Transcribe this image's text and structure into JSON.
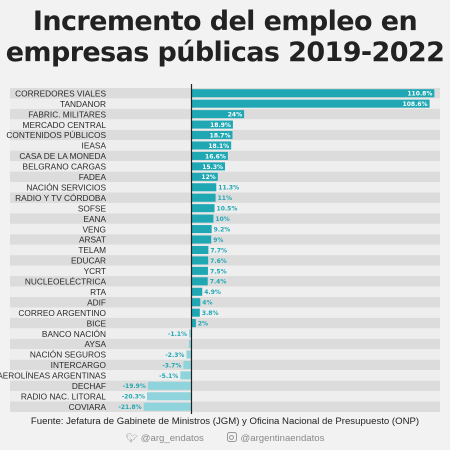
{
  "title_lines": [
    "Incremento del empleo en",
    "empresas públicas 2019-2022"
  ],
  "source": "Fuente: Jefatura de Gabinete de Ministros (JGM) y Oficina Nacional de Presupuesto (ONP)",
  "socials": {
    "twitter": "@arg_endatos",
    "instagram": "@argentinaendatos"
  },
  "colors": {
    "positive_bar": "#1fa7b4",
    "negative_bar": "#8fd4dc",
    "zero_line": "#222222",
    "stripe_light": "#eeeeee",
    "stripe_dark": "#dcdcdc"
  },
  "chart_data": {
    "type": "bar",
    "orientation": "horizontal",
    "categories": [
      "CORREDORES VIALES",
      "TANDANOR",
      "FABRIC. MILITARES",
      "MERCADO CENTRAL",
      "CONTENIDOS PÚBLICOS",
      "IEASA",
      "CASA DE LA MONEDA",
      "BELGRANO CARGAS",
      "FADEA",
      "NACIÓN SERVICIOS",
      "RADIO Y TV CÓRDOBA",
      "SOFSE",
      "EANA",
      "VENG",
      "ARSAT",
      "TELAM",
      "EDUCAR",
      "YCRT",
      "NUCLEOELÉCTRICA",
      "RTA",
      "ADIF",
      "CORREO ARGENTINO",
      "BICE",
      "BANCO NACIÓN",
      "AYSA",
      "NACIÓN SEGUROS",
      "INTERCARGO",
      "AEROLÍNEAS ARGENTINAS",
      "DECHAF",
      "RADIO NAC. LITORAL",
      "COVIARA"
    ],
    "values": [
      110.8,
      108.6,
      24,
      18.9,
      18.7,
      18.1,
      16.6,
      15.3,
      12,
      11.3,
      11,
      10.5,
      10,
      9.2,
      9,
      7.7,
      7.6,
      7.5,
      7.4,
      4.9,
      4,
      3.8,
      2,
      -1.1,
      -1.2,
      -2.3,
      -3.7,
      -5.1,
      -19.9,
      -20.3,
      -21.8
    ],
    "labels": [
      "110.8%",
      "108.6%",
      "24%",
      "18.9%",
      "18.7%",
      "18.1%",
      "16.6%",
      "15.3%",
      "12%",
      "11.3%",
      "11%",
      "10.5%",
      "10%",
      "9.2%",
      "9%",
      "7.7%",
      "7.6%",
      "7.5%",
      "7.4%",
      "4.9%",
      "4%",
      "3.8%",
      "2%",
      "-1.1%",
      "",
      "-2.3%",
      "-3.7%",
      "-5.1%",
      "-19.9%",
      "-20.3%",
      "-21.8%"
    ],
    "unit": "%",
    "xlim": [
      -33,
      112
    ],
    "grid": false,
    "legend": "none"
  }
}
